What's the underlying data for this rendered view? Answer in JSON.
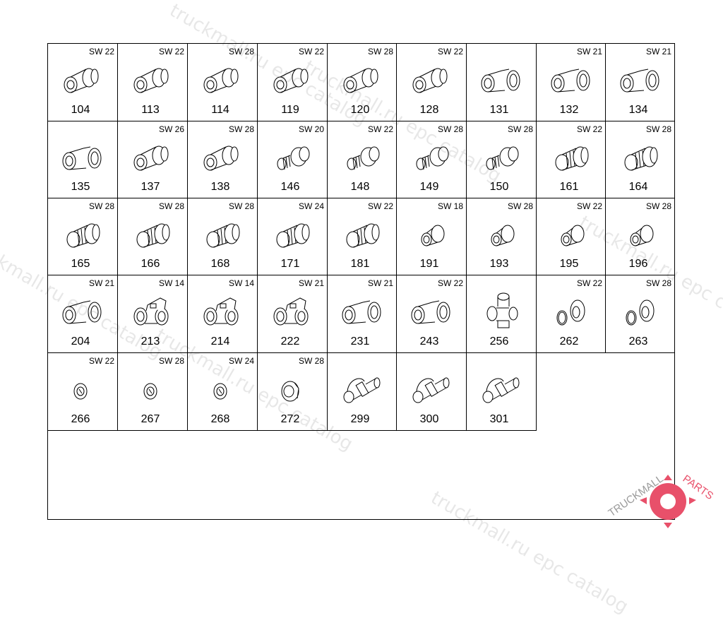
{
  "parts": [
    {
      "number": "104",
      "sw": "SW 22",
      "icon": "straight-fitting-icon"
    },
    {
      "number": "113",
      "sw": "SW 22",
      "icon": "straight-fitting-icon"
    },
    {
      "number": "114",
      "sw": "SW 28",
      "icon": "straight-fitting-icon"
    },
    {
      "number": "119",
      "sw": "SW 22",
      "icon": "straight-fitting-icon"
    },
    {
      "number": "120",
      "sw": "SW 28",
      "icon": "straight-fitting-icon"
    },
    {
      "number": "128",
      "sw": "SW 22",
      "icon": "straight-fitting-icon"
    },
    {
      "number": "131",
      "sw": "",
      "icon": "elbow-fitting-icon"
    },
    {
      "number": "132",
      "sw": "SW 21",
      "icon": "elbow-fitting-icon"
    },
    {
      "number": "134",
      "sw": "SW 21",
      "icon": "elbow-fitting-icon"
    },
    {
      "number": "135",
      "sw": "",
      "icon": "elbow-fitting-icon"
    },
    {
      "number": "137",
      "sw": "SW 26",
      "icon": "straight-fitting-icon"
    },
    {
      "number": "138",
      "sw": "SW 28",
      "icon": "straight-fitting-icon"
    },
    {
      "number": "146",
      "sw": "SW 20",
      "icon": "threaded-nipple-icon"
    },
    {
      "number": "148",
      "sw": "SW 22",
      "icon": "threaded-nipple-icon"
    },
    {
      "number": "149",
      "sw": "SW 28",
      "icon": "threaded-nipple-icon"
    },
    {
      "number": "150",
      "sw": "SW 28",
      "icon": "threaded-nipple-icon"
    },
    {
      "number": "161",
      "sw": "SW 22",
      "icon": "threaded-bushing-icon"
    },
    {
      "number": "164",
      "sw": "SW 28",
      "icon": "threaded-bushing-icon"
    },
    {
      "number": "165",
      "sw": "SW 28",
      "icon": "threaded-bushing-icon"
    },
    {
      "number": "166",
      "sw": "SW 28",
      "icon": "threaded-bushing-icon"
    },
    {
      "number": "168",
      "sw": "SW 28",
      "icon": "threaded-bushing-icon"
    },
    {
      "number": "171",
      "sw": "SW 24",
      "icon": "threaded-bushing-icon"
    },
    {
      "number": "181",
      "sw": "SW 22",
      "icon": "threaded-bushing-icon"
    },
    {
      "number": "191",
      "sw": "SW 18",
      "icon": "reducer-icon"
    },
    {
      "number": "193",
      "sw": "SW 28",
      "icon": "reducer-icon"
    },
    {
      "number": "195",
      "sw": "SW 22",
      "icon": "reducer-icon"
    },
    {
      "number": "196",
      "sw": "SW 28",
      "icon": "reducer-icon"
    },
    {
      "number": "204",
      "sw": "SW 21",
      "icon": "elbow-fitting-icon"
    },
    {
      "number": "213",
      "sw": "SW 14",
      "icon": "tee-fitting-icon"
    },
    {
      "number": "214",
      "sw": "SW 14",
      "icon": "tee-fitting-icon"
    },
    {
      "number": "222",
      "sw": "SW 21",
      "icon": "tee-fitting-icon"
    },
    {
      "number": "231",
      "sw": "SW 21",
      "icon": "elbow-fitting-icon"
    },
    {
      "number": "243",
      "sw": "SW 22",
      "icon": "elbow-fitting-icon"
    },
    {
      "number": "256",
      "sw": "",
      "icon": "cross-fitting-icon"
    },
    {
      "number": "262",
      "sw": "SW 22",
      "icon": "nut-washer-icon"
    },
    {
      "number": "263",
      "sw": "SW 28",
      "icon": "nut-washer-icon"
    },
    {
      "number": "266",
      "sw": "SW 22",
      "icon": "nut-icon"
    },
    {
      "number": "267",
      "sw": "SW 28",
      "icon": "nut-icon"
    },
    {
      "number": "268",
      "sw": "SW 24",
      "icon": "nut-icon"
    },
    {
      "number": "272",
      "sw": "SW 28",
      "icon": "cap-nut-icon"
    },
    {
      "number": "299",
      "sw": "",
      "icon": "banjo-fitting-icon"
    },
    {
      "number": "300",
      "sw": "",
      "icon": "banjo-fitting-icon"
    },
    {
      "number": "301",
      "sw": "",
      "icon": "banjo-fitting-icon"
    }
  ],
  "watermark": "truckmall.ru epc catalog",
  "logo": {
    "text_a": "TRUCKMALL",
    "text_b": "PARTS",
    "color_a": "#9a9a9a",
    "color_b": "#e8506a"
  }
}
